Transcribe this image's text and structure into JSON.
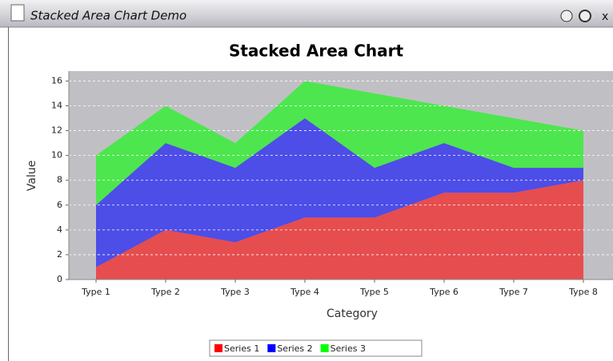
{
  "window_title": "Stacked Area Chart Demo",
  "chart_data": {
    "type": "stacked_area",
    "title": "Stacked Area Chart",
    "x_label": "Category",
    "y_label": "Value",
    "categories": [
      "Type 1",
      "Type 2",
      "Type 3",
      "Type 4",
      "Type 5",
      "Type 6",
      "Type 7",
      "Type 8"
    ],
    "series": [
      {
        "name": "Series 1",
        "color": "#ff0000",
        "values": [
          1,
          4,
          3,
          5,
          5,
          7,
          7,
          8
        ]
      },
      {
        "name": "Series 2",
        "color": "#0000ff",
        "values": [
          5,
          7,
          6,
          8,
          4,
          4,
          2,
          1
        ]
      },
      {
        "name": "Series 3",
        "color": "#00ff00",
        "values": [
          4,
          3,
          2,
          3,
          6,
          3,
          4,
          3
        ]
      }
    ],
    "ylim": [
      0,
      16.8
    ],
    "yticks": [
      0,
      2,
      4,
      6,
      8,
      10,
      12,
      14,
      16
    ],
    "grid": true,
    "legend": "bottom"
  }
}
